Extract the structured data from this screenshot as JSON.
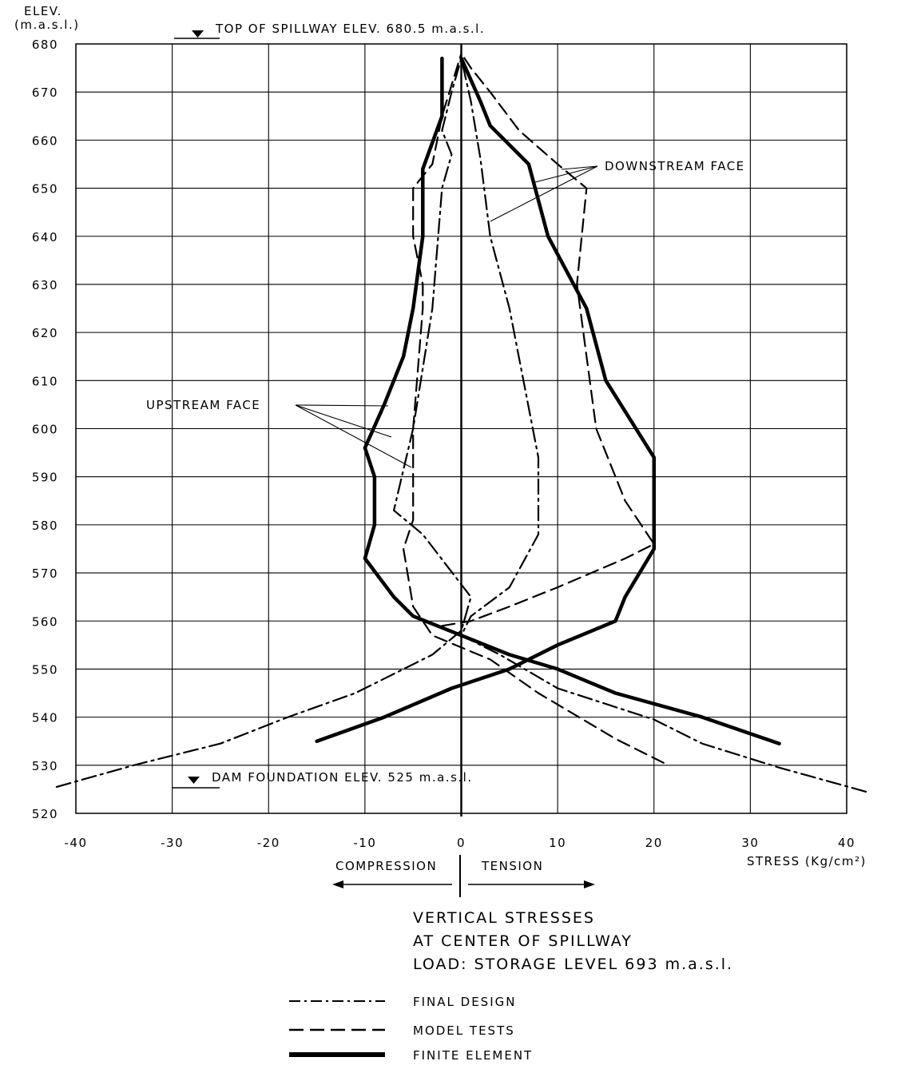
{
  "chart_data": {
    "type": "line",
    "y_axis": {
      "label_line1": "ELEV.",
      "label_line2": "(m.a.s.l.)",
      "ylim": [
        520,
        680
      ],
      "ticks": [
        680,
        670,
        660,
        650,
        640,
        630,
        620,
        610,
        600,
        590,
        580,
        570,
        560,
        550,
        540,
        530,
        520
      ],
      "tick_labels": [
        "680",
        "670",
        "660",
        "650",
        "640",
        "630",
        "620",
        "610",
        "600",
        "590",
        "580",
        "570",
        "560",
        "550",
        "540",
        "530",
        "520"
      ]
    },
    "x_axis": {
      "label": "STRESS (Kg/cm²)",
      "xlim": [
        -40,
        40
      ],
      "ticks": [
        -40,
        -30,
        -20,
        -10,
        0,
        10,
        20,
        30,
        40
      ],
      "tick_labels": [
        "-40",
        "-30",
        "-20",
        "-10",
        "0",
        "10",
        "20",
        "30",
        "40"
      ]
    },
    "grid": true,
    "reference_lines": {
      "top": {
        "elev": 680.5,
        "label": "TOP OF SPILLWAY ELEV. 680.5 m.a.s.l."
      },
      "bottom": {
        "elev": 525,
        "label": "DAM FOUNDATION ELEV. 525 m.a.s.l."
      }
    },
    "direction_labels": {
      "compression": "COMPRESSION",
      "tension": "TENSION"
    },
    "annotations": {
      "downstream": "DOWNSTREAM FACE",
      "upstream": "UPSTREAM FACE"
    },
    "caption": [
      "VERTICAL STRESSES",
      "AT CENTER OF SPILLWAY",
      "LOAD: STORAGE LEVEL 693 m.a.s.l."
    ],
    "legend": {
      "placement": "bottom",
      "entries": [
        {
          "name": "FINAL DESIGN",
          "style": "dash-dot"
        },
        {
          "name": "MODEL TESTS",
          "style": "dashed"
        },
        {
          "name": "FINITE ELEMENT",
          "style": "thick-solid"
        }
      ]
    },
    "series": [
      {
        "name": "FINAL DESIGN",
        "face": "upstream",
        "style": "dash-dot",
        "points": [
          [
            -42,
            525.5
          ],
          [
            -34,
            530
          ],
          [
            -25,
            534.5
          ],
          [
            -18,
            540
          ],
          [
            -11,
            545
          ],
          [
            -3,
            553
          ],
          [
            0,
            558
          ],
          [
            1,
            565
          ],
          [
            -4,
            578
          ],
          [
            -7,
            583
          ],
          [
            -5,
            600
          ],
          [
            -3,
            625
          ],
          [
            -2,
            650
          ],
          [
            -1,
            657
          ],
          [
            -2,
            662
          ],
          [
            -1,
            670
          ],
          [
            0,
            677
          ]
        ]
      },
      {
        "name": "FINAL DESIGN",
        "face": "downstream",
        "style": "dash-dot",
        "points": [
          [
            42,
            524.5
          ],
          [
            33,
            529.5
          ],
          [
            25,
            534.5
          ],
          [
            20,
            539.5
          ],
          [
            10,
            546
          ],
          [
            4,
            553
          ],
          [
            0,
            557
          ],
          [
            1,
            561
          ],
          [
            5,
            567
          ],
          [
            8,
            578
          ],
          [
            8,
            594
          ],
          [
            5,
            625
          ],
          [
            3,
            640
          ],
          [
            2,
            656
          ],
          [
            1,
            668
          ],
          [
            0,
            677
          ]
        ]
      },
      {
        "name": "MODEL TESTS",
        "face": "upstream",
        "style": "dashed",
        "points": [
          [
            21,
            530.5
          ],
          [
            16,
            535.5
          ],
          [
            8,
            545
          ],
          [
            3,
            552
          ],
          [
            -3,
            557
          ],
          [
            -5,
            563
          ],
          [
            -6,
            575
          ],
          [
            -5,
            581
          ],
          [
            -5,
            595
          ],
          [
            -5,
            600
          ],
          [
            -4,
            625
          ],
          [
            -4,
            630
          ],
          [
            -5,
            640
          ],
          [
            -5,
            650
          ],
          [
            -3,
            655
          ],
          [
            -2,
            665
          ],
          [
            0,
            678
          ]
        ]
      },
      {
        "name": "MODEL TESTS",
        "face": "downstream",
        "style": "dashed",
        "points": [
          [
            -2,
            559
          ],
          [
            1,
            560
          ],
          [
            5,
            563
          ],
          [
            10,
            567
          ],
          [
            17,
            573
          ],
          [
            20,
            576
          ],
          [
            17,
            585
          ],
          [
            14,
            600
          ],
          [
            12,
            630
          ],
          [
            13,
            650
          ],
          [
            10,
            655
          ],
          [
            6,
            662
          ],
          [
            3,
            670
          ],
          [
            1,
            675
          ],
          [
            0,
            678
          ]
        ]
      },
      {
        "name": "FINITE ELEMENT",
        "face": "upstream",
        "style": "thick-solid",
        "points": [
          [
            33,
            534.5
          ],
          [
            25,
            540
          ],
          [
            16,
            545
          ],
          [
            10,
            550
          ],
          [
            5,
            553
          ],
          [
            -5,
            561
          ],
          [
            -7,
            565
          ],
          [
            -10,
            573
          ],
          [
            -9,
            580
          ],
          [
            -9,
            590
          ],
          [
            -10,
            596
          ],
          [
            -8,
            605
          ],
          [
            -6,
            615
          ],
          [
            -5,
            625
          ],
          [
            -4,
            640
          ],
          [
            -4,
            650
          ],
          [
            -4,
            654
          ],
          [
            -2,
            665
          ],
          [
            -2,
            677
          ]
        ]
      },
      {
        "name": "FINITE ELEMENT",
        "face": "downstream",
        "style": "thick-solid",
        "points": [
          [
            -15,
            535
          ],
          [
            -8,
            540
          ],
          [
            -1,
            546
          ],
          [
            5,
            550
          ],
          [
            10,
            555
          ],
          [
            16,
            560
          ],
          [
            17,
            565
          ],
          [
            20,
            575
          ],
          [
            20,
            580
          ],
          [
            20,
            594
          ],
          [
            15,
            610
          ],
          [
            13,
            625
          ],
          [
            9,
            640
          ],
          [
            7,
            655
          ],
          [
            3,
            663
          ],
          [
            2,
            668
          ],
          [
            0,
            677
          ]
        ]
      }
    ]
  }
}
